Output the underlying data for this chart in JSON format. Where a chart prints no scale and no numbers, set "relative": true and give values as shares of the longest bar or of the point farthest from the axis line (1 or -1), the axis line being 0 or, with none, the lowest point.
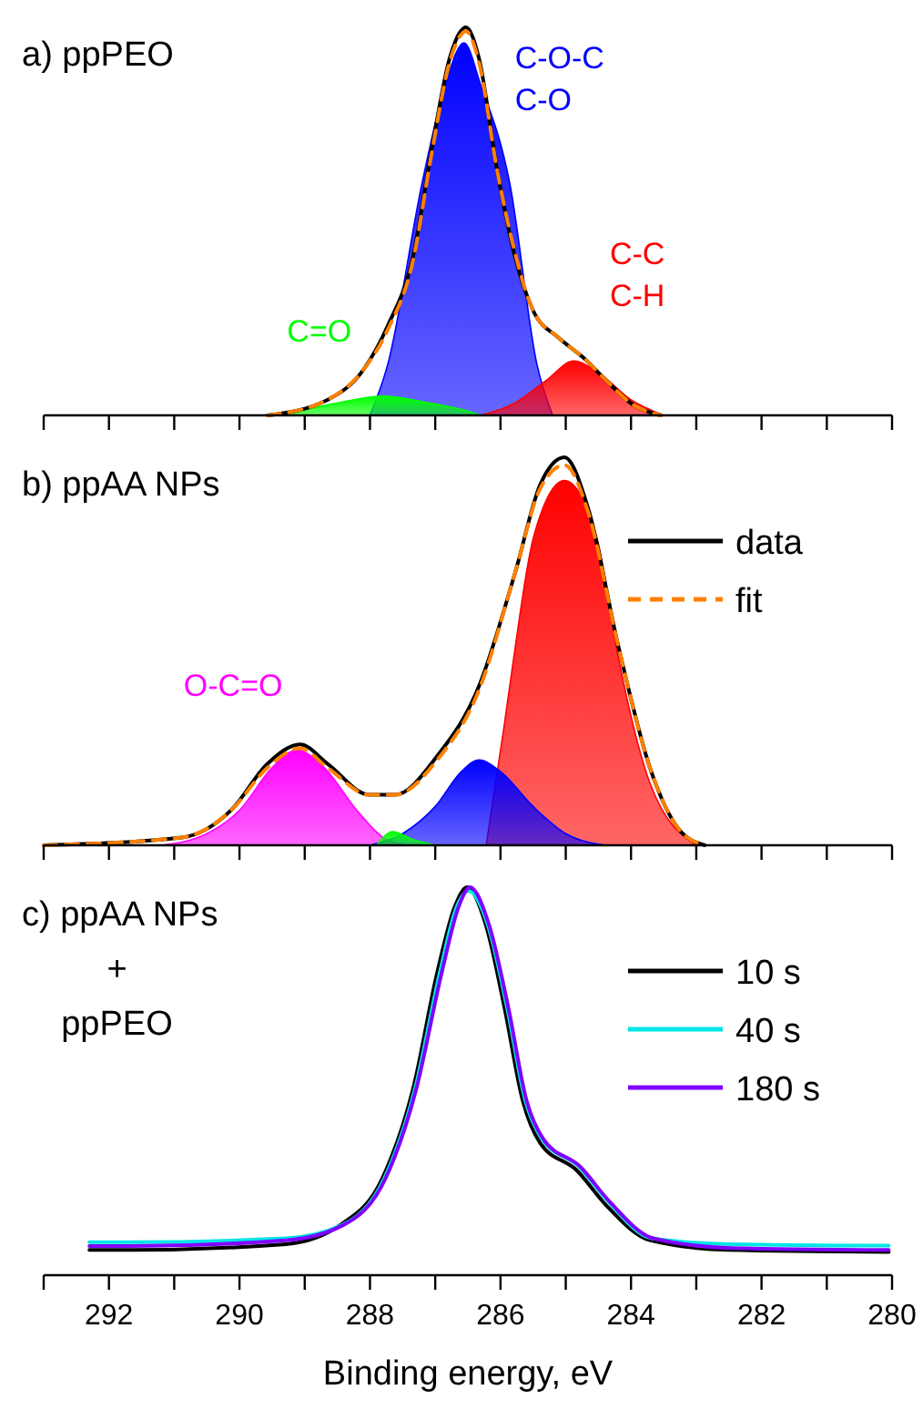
{
  "chart_data": [
    {
      "type": "line",
      "title": "a) ppPEO",
      "relative": true,
      "xlim": [
        293,
        280
      ],
      "xticks": [
        {
          "value": 293,
          "label": null
        },
        292,
        {
          "value": 291,
          "label": null
        },
        290,
        {
          "value": 289,
          "label": null
        },
        288,
        {
          "value": 287,
          "label": null
        },
        286,
        {
          "value": 285,
          "label": null
        },
        284,
        {
          "value": 283,
          "label": null
        },
        282,
        {
          "value": 281,
          "label": null
        },
        280
      ],
      "tick_labels": false,
      "series": [
        {
          "type": "area",
          "name": "C=O",
          "color": "#00ff00",
          "x": [
            289.6,
            289.0,
            288.4,
            287.8,
            287.2,
            286.6,
            286.3
          ],
          "values": [
            0,
            0.015,
            0.035,
            0.05,
            0.035,
            0.015,
            0
          ]
        },
        {
          "type": "area",
          "name": "C-O-C\nC-O",
          "color": "#0000ff",
          "x": [
            288.0,
            287.73,
            287.2,
            286.85,
            286.56,
            286.3,
            285.86,
            285.44,
            285.2
          ],
          "values": [
            0,
            0.13,
            0.6,
            0.85,
            0.96,
            0.85,
            0.6,
            0.13,
            0
          ]
        },
        {
          "type": "area",
          "name": "C-C\nC-H",
          "color": "#ff0000",
          "x": [
            286.3,
            285.8,
            285.3,
            284.88,
            284.5,
            284.0,
            283.5
          ],
          "values": [
            0,
            0.03,
            0.09,
            0.14,
            0.11,
            0.04,
            0
          ]
        },
        {
          "color": "#000000",
          "x": [
            289.57,
            288.65,
            288.09,
            287.73,
            287.34,
            287.06,
            286.78,
            286.61,
            286.53,
            286.33,
            286.05,
            285.78,
            285.5,
            285.11,
            284.74,
            284.38,
            283.99,
            283.54
          ],
          "values": [
            0,
            0.04,
            0.12,
            0.23,
            0.41,
            0.68,
            0.92,
            0.99,
            1.0,
            0.92,
            0.63,
            0.41,
            0.27,
            0.2,
            0.15,
            0.09,
            0.03,
            0
          ]
        },
        {
          "color": "#ff8000",
          "line_style": "dashed",
          "x": [
            289.57,
            288.65,
            288.09,
            287.73,
            287.34,
            287.06,
            286.78,
            286.61,
            286.53,
            286.33,
            286.05,
            285.78,
            285.5,
            285.11,
            284.74,
            284.38,
            283.99,
            283.54
          ],
          "values": [
            0,
            0.04,
            0.12,
            0.22,
            0.4,
            0.67,
            0.91,
            0.98,
            0.99,
            0.91,
            0.63,
            0.42,
            0.27,
            0.2,
            0.15,
            0.09,
            0.03,
            0
          ]
        }
      ]
    },
    {
      "type": "line",
      "title": "b) ppAA NPs",
      "relative": true,
      "xlim": [
        293,
        280
      ],
      "xticks": [
        {
          "value": 293,
          "label": null
        },
        292,
        {
          "value": 291,
          "label": null
        },
        290,
        {
          "value": 289,
          "label": null
        },
        288,
        {
          "value": 287,
          "label": null
        },
        286,
        {
          "value": 285,
          "label": null
        },
        284,
        {
          "value": 283,
          "label": null
        },
        282,
        {
          "value": 281,
          "label": null
        },
        280
      ],
      "tick_labels": false,
      "legend": "top right",
      "series": [
        {
          "type": "area",
          "name": "O-C=O",
          "color": "#ff00ff",
          "x": [
            291.2,
            290.5,
            290.0,
            289.5,
            289.12,
            288.7,
            288.2,
            287.8,
            287.45
          ],
          "values": [
            0,
            0.03,
            0.09,
            0.2,
            0.245,
            0.2,
            0.09,
            0.02,
            0
          ]
        },
        {
          "type": "area",
          "color": "#00ff00",
          "x": [
            287.9,
            287.65,
            287.35,
            287.0
          ],
          "values": [
            0,
            0.035,
            0.015,
            0
          ]
        },
        {
          "type": "area",
          "color": "#0000ff",
          "x": [
            288.0,
            287.5,
            287.0,
            286.6,
            286.33,
            286.0,
            285.5,
            285.0,
            284.38
          ],
          "values": [
            0,
            0.03,
            0.1,
            0.19,
            0.22,
            0.19,
            0.1,
            0.03,
            0
          ]
        },
        {
          "type": "area",
          "color": "#ff0000",
          "x": [
            286.22,
            285.95,
            285.8,
            285.5,
            285.02,
            284.52,
            284.19,
            283.71,
            283.0
          ],
          "values": [
            0,
            0.3,
            0.48,
            0.79,
            0.94,
            0.79,
            0.48,
            0.16,
            0
          ]
        },
        {
          "name": "data",
          "color": "#000000",
          "x": [
            293.0,
            290.88,
            290.13,
            289.57,
            289.07,
            288.65,
            288.01,
            287.62,
            286.97,
            286.33,
            285.78,
            285.39,
            285.02,
            284.66,
            284.19,
            283.71,
            283.26,
            282.87
          ],
          "values": [
            0,
            0.02,
            0.09,
            0.21,
            0.26,
            0.21,
            0.13,
            0.13,
            0.23,
            0.41,
            0.7,
            0.93,
            1.0,
            0.87,
            0.51,
            0.2,
            0.04,
            0
          ]
        },
        {
          "name": "fit",
          "color": "#ff8000",
          "line_style": "dashed",
          "x": [
            293.0,
            290.88,
            290.13,
            289.57,
            289.07,
            288.65,
            288.01,
            287.62,
            286.97,
            286.33,
            285.78,
            285.39,
            285.02,
            284.66,
            284.19,
            283.71,
            283.26,
            282.87
          ],
          "values": [
            0,
            0.02,
            0.09,
            0.2,
            0.25,
            0.2,
            0.13,
            0.13,
            0.22,
            0.4,
            0.7,
            0.92,
            0.98,
            0.86,
            0.51,
            0.2,
            0.04,
            0
          ]
        }
      ]
    },
    {
      "type": "line",
      "title": "c) ppAA NPs\n+\nppPEO",
      "xlabel": "Binding energy, eV",
      "relative": true,
      "xlim": [
        293,
        280
      ],
      "xticks": [
        {
          "value": 293,
          "label": null
        },
        292,
        {
          "value": 291,
          "label": null
        },
        290,
        {
          "value": 289,
          "label": null
        },
        288,
        {
          "value": 287,
          "label": null
        },
        286,
        {
          "value": 285,
          "label": null
        },
        284,
        {
          "value": 283,
          "label": null
        },
        282,
        {
          "value": 281,
          "label": null
        },
        280
      ],
      "tick_labels": "x",
      "legend": "top right",
      "series": [
        {
          "name": "10 s",
          "color": "#000000",
          "x": [
            292.3,
            291.66,
            289.29,
            288.45,
            287.81,
            287.34,
            286.97,
            286.7,
            286.51,
            286.22,
            285.94,
            285.66,
            285.39,
            284.83,
            284.38,
            283.71,
            282.51,
            280.05
          ],
          "values": [
            0.065,
            0.065,
            0.08,
            0.13,
            0.25,
            0.48,
            0.78,
            0.95,
            1.0,
            0.9,
            0.69,
            0.45,
            0.34,
            0.27,
            0.18,
            0.09,
            0.065,
            0.06
          ]
        },
        {
          "name": "40 s",
          "color": "#00e5e5",
          "x": [
            292.3,
            291.66,
            289.29,
            288.42,
            287.78,
            287.31,
            286.93,
            286.67,
            286.49,
            286.19,
            285.9,
            285.62,
            285.36,
            284.8,
            284.35,
            283.68,
            282.48,
            280.05
          ],
          "values": [
            0.085,
            0.085,
            0.095,
            0.13,
            0.25,
            0.48,
            0.78,
            0.95,
            0.99,
            0.9,
            0.69,
            0.45,
            0.35,
            0.28,
            0.19,
            0.095,
            0.08,
            0.076
          ]
        },
        {
          "name": "180 s",
          "color": "#8000ff",
          "x": [
            292.3,
            291.66,
            289.29,
            288.4,
            287.76,
            287.29,
            286.9,
            286.64,
            286.47,
            286.17,
            285.88,
            285.6,
            285.34,
            284.78,
            284.33,
            283.66,
            282.46,
            280.05
          ],
          "values": [
            0.075,
            0.075,
            0.09,
            0.13,
            0.25,
            0.48,
            0.78,
            0.95,
            1.0,
            0.9,
            0.69,
            0.45,
            0.35,
            0.28,
            0.19,
            0.095,
            0.07,
            0.065
          ]
        }
      ]
    }
  ]
}
